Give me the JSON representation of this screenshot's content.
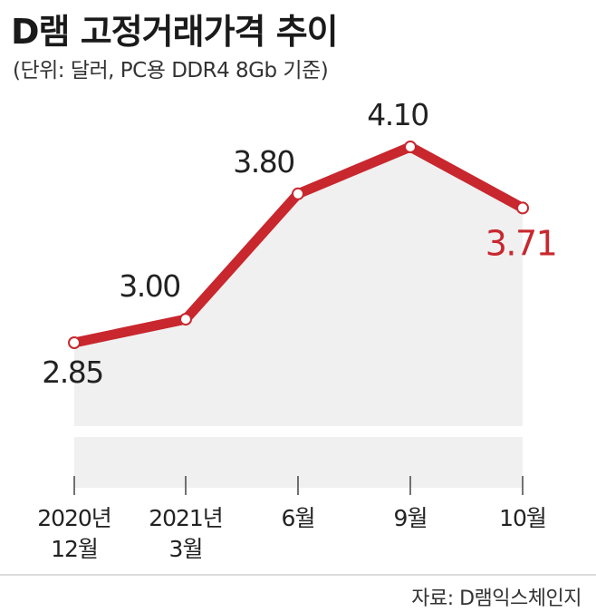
{
  "title": "D램 고정거래가격 추이",
  "subtitle": "(단위: 달러, PC용 DDR4 8Gb 기준)",
  "source": "자료: D램익스체인지",
  "colors": {
    "line": "#c8272e",
    "highlight": "#c8272e",
    "area": "#f0f0f0",
    "text": "#222222"
  },
  "chart_data": {
    "type": "line",
    "categories": [
      [
        "2020년",
        "12월"
      ],
      [
        "2021년",
        "3월"
      ],
      [
        "6월"
      ],
      [
        "9월"
      ],
      [
        "10월"
      ]
    ],
    "values": [
      2.85,
      3.0,
      3.8,
      4.1,
      3.71
    ],
    "data_labels": [
      "2.85",
      "3.00",
      "3.80",
      "4.10",
      "3.71"
    ],
    "highlight_index": 4,
    "filled_area": true,
    "broken_axis": true
  }
}
